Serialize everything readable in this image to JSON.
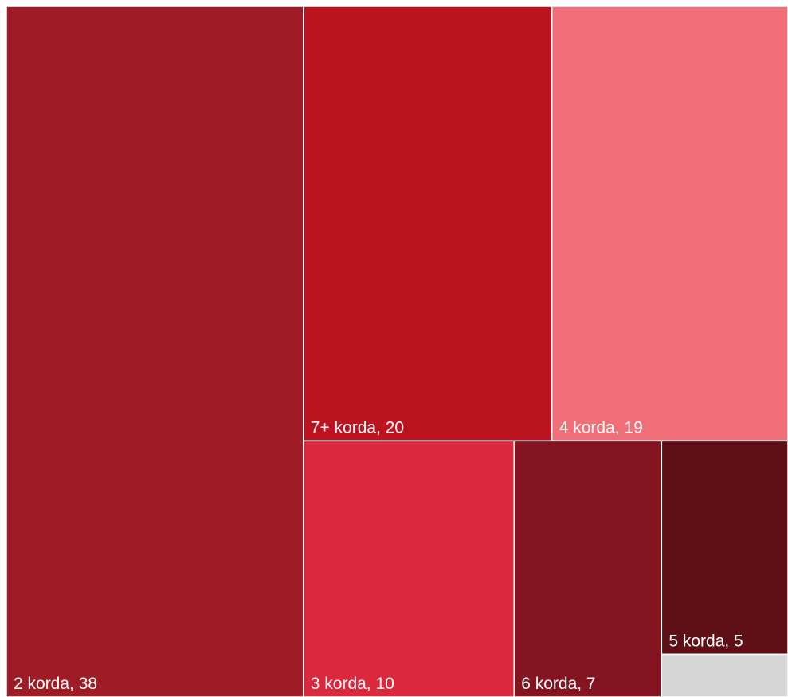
{
  "chart_data": {
    "type": "treemap",
    "categories": [
      "2 korda, 38",
      "7+ korda, 20",
      "4 korda, 19",
      "3 korda, 10",
      "6 korda, 7",
      "5 korda, 5",
      null
    ],
    "values": [
      38,
      20,
      19,
      10,
      7,
      5,
      1
    ],
    "colors": [
      "#9e1c25",
      "#bc1320",
      "#f06e78",
      "#da283c",
      "#841520",
      "#5e1016",
      "#d6d6d6"
    ]
  }
}
